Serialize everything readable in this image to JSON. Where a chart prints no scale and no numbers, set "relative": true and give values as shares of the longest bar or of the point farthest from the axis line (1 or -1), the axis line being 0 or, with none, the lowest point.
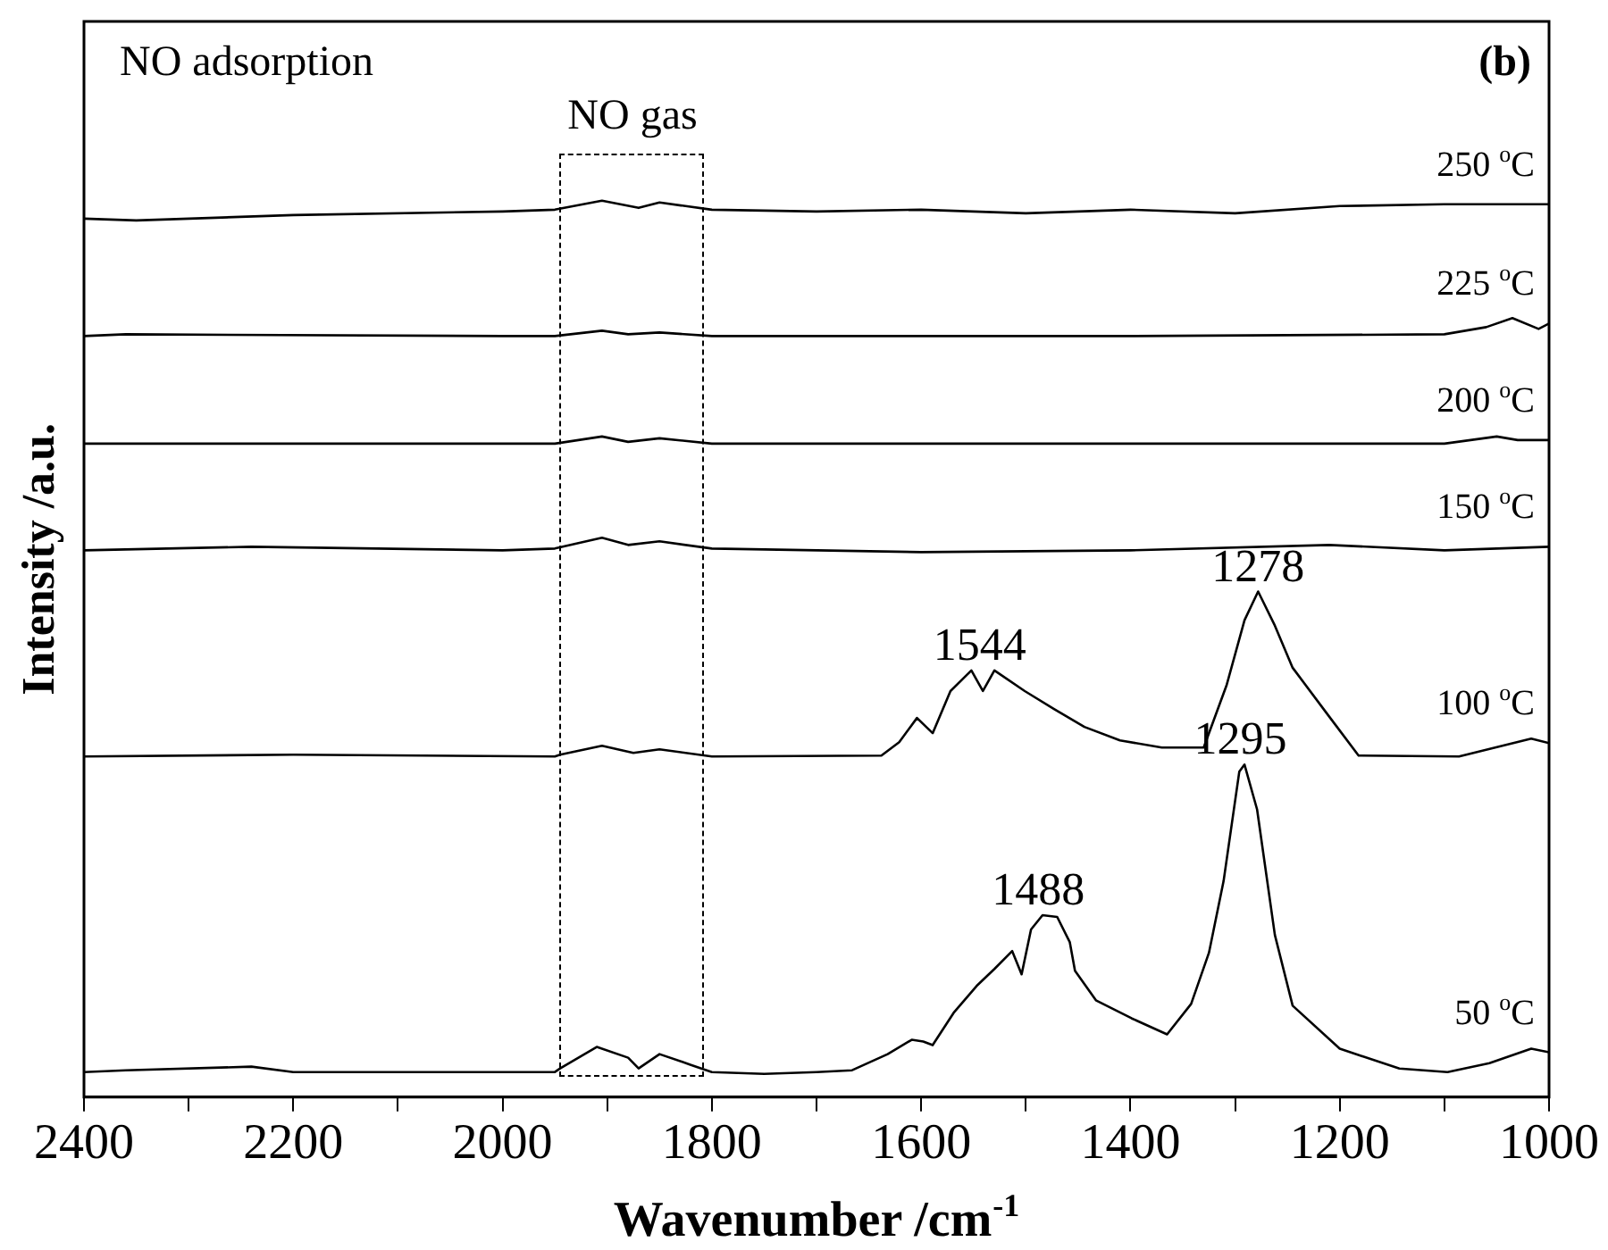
{
  "chart_data": {
    "type": "line",
    "relative": true,
    "xlabel": "Wavenumber /cm$^{-1}$",
    "ylabel": "Intensity /a.u.",
    "xlim": [
      2400,
      1000
    ],
    "xticks": [
      2400,
      {
        "value": 2300,
        "label": null
      },
      2200,
      {
        "value": 2100,
        "label": null
      },
      2000,
      {
        "value": 1900,
        "label": null
      },
      1800,
      {
        "value": 1700,
        "label": null
      },
      1600,
      {
        "value": 1500,
        "label": null
      },
      1400,
      {
        "value": 1300,
        "label": null
      },
      1200,
      {
        "value": 1100,
        "label": null
      },
      1000
    ],
    "grid": false,
    "legend": false,
    "marker": "none",
    "line_style": "solid",
    "series": [
      {
        "name": "50 $^{o}$C",
        "color": "#000000",
        "x": [
          2400,
          2360,
          2240,
          2200,
          1950,
          1945,
          1910,
          1880,
          1870,
          1850,
          1820,
          1800,
          1750,
          1700,
          1666,
          1632,
          1609,
          1598,
          1589,
          1569,
          1547,
          1530,
          1513,
          1504,
          1495,
          1484,
          1470,
          1458,
          1453,
          1433,
          1399,
          1365,
          1342,
          1325,
          1311,
          1296,
          1291,
          1279,
          1262,
          1245,
          1200,
          1143,
          1097,
          1057,
          1017,
          1000
        ],
        "values": [
          0.028,
          0.03,
          0.034,
          0.028,
          0.028,
          0.032,
          0.056,
          0.044,
          0.032,
          0.048,
          0.036,
          0.028,
          0.026,
          0.028,
          0.03,
          0.048,
          0.064,
          0.062,
          0.058,
          0.094,
          0.124,
          0.143,
          0.163,
          0.137,
          0.187,
          0.203,
          0.201,
          0.173,
          0.141,
          0.108,
          0.088,
          0.07,
          0.104,
          0.161,
          0.241,
          0.363,
          0.371,
          0.321,
          0.181,
          0.102,
          0.054,
          0.032,
          0.028,
          0.038,
          0.054,
          0.05
        ]
      },
      {
        "name": "100 $^{o}$C",
        "color": "#000000",
        "x": [
          2400,
          2200,
          1950,
          1945,
          1905,
          1875,
          1850,
          1800,
          1638,
          1621,
          1604,
          1589,
          1572,
          1552,
          1541,
          1530,
          1501,
          1473,
          1444,
          1410,
          1370,
          1330,
          1308,
          1291,
          1278,
          1262,
          1245,
          1211,
          1182,
          1086,
          1017,
          1000
        ],
        "values": [
          0.38,
          0.382,
          0.38,
          0.382,
          0.392,
          0.384,
          0.388,
          0.38,
          0.381,
          0.396,
          0.423,
          0.406,
          0.453,
          0.476,
          0.453,
          0.476,
          0.453,
          0.433,
          0.413,
          0.398,
          0.39,
          0.39,
          0.46,
          0.532,
          0.564,
          0.526,
          0.479,
          0.426,
          0.381,
          0.38,
          0.4,
          0.395
        ]
      },
      {
        "name": "150 $^{o}$C",
        "color": "#000000",
        "x": [
          2400,
          2240,
          2000,
          1950,
          1905,
          1880,
          1850,
          1800,
          1600,
          1400,
          1210,
          1100,
          1000
        ],
        "values": [
          0.61,
          0.614,
          0.61,
          0.612,
          0.624,
          0.616,
          0.62,
          0.612,
          0.608,
          0.61,
          0.616,
          0.61,
          0.614
        ]
      },
      {
        "name": "200 $^{o}$C",
        "color": "#000000",
        "x": [
          2400,
          2000,
          1950,
          1905,
          1880,
          1850,
          1800,
          1400,
          1100,
          1050,
          1030,
          1000
        ],
        "values": [
          0.729,
          0.729,
          0.729,
          0.737,
          0.731,
          0.735,
          0.729,
          0.729,
          0.729,
          0.737,
          0.733,
          0.733
        ]
      },
      {
        "name": "225 $^{o}$C",
        "color": "#000000",
        "x": [
          2400,
          2360,
          2000,
          1950,
          1905,
          1880,
          1850,
          1800,
          1400,
          1100,
          1060,
          1035,
          1010,
          1000
        ],
        "values": [
          0.849,
          0.851,
          0.849,
          0.849,
          0.855,
          0.851,
          0.853,
          0.849,
          0.849,
          0.851,
          0.859,
          0.869,
          0.857,
          0.863
        ]
      },
      {
        "name": "250 $^{o}$C",
        "color": "#000000",
        "x": [
          2400,
          2350,
          2200,
          2000,
          1950,
          1905,
          1870,
          1850,
          1800,
          1700,
          1600,
          1500,
          1400,
          1300,
          1200,
          1100,
          1000
        ],
        "values": [
          0.98,
          0.978,
          0.984,
          0.988,
          0.99,
          1.0,
          0.992,
          0.998,
          0.99,
          0.988,
          0.99,
          0.986,
          0.99,
          0.986,
          0.994,
          0.996,
          0.996
        ]
      }
    ],
    "annotations": [
      "NO adsorption",
      "(b)",
      "NO gas",
      {
        "text": "1544",
        "x": 1544,
        "y": 0.476
      },
      {
        "text": "1278",
        "x": 1278,
        "y": 0.564
      },
      {
        "text": "1295",
        "x": 1295,
        "y": 0.371
      },
      {
        "text": "1488",
        "x": 1488,
        "y": 0.203
      }
    ]
  }
}
